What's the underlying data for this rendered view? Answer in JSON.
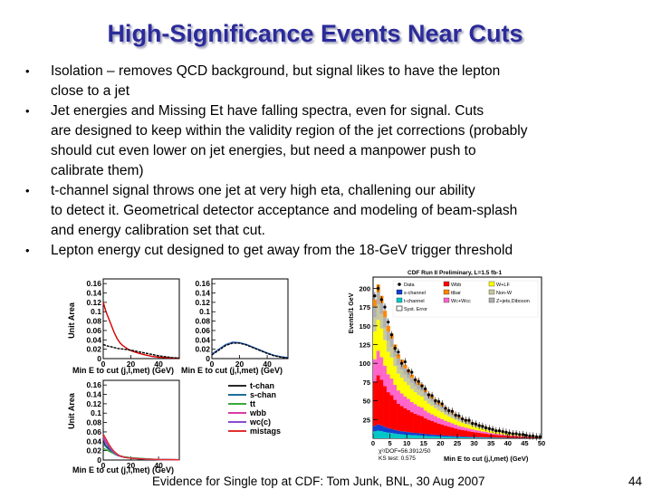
{
  "slide": {
    "title": "High-Significance Events Near Cuts",
    "bullets": [
      {
        "lines": [
          "Isolation – removes QCD background, but signal likes to have the lepton",
          "close to a jet"
        ]
      },
      {
        "lines": [
          "Jet energies and Missing Et have falling spectra, even for signal.  Cuts",
          "are designed to keep within the validity region of the jet corrections (probably",
          "should cut even lower on jet energies, but need a manpower push to",
          "calibrate them)"
        ]
      },
      {
        "lines": [
          "t-channel signal throws one jet at very high eta, challening our ability",
          "to detect it.  Geometrical detector acceptance and modeling of beam-splash",
          "and energy calibration set that cut."
        ]
      },
      {
        "lines": [
          "Lepton energy cut designed to get away from the 18-GeV trigger threshold"
        ]
      }
    ],
    "footer": "Evidence for Single top at CDF: Tom Junk, BNL, 30 Aug 2007",
    "page_number": "44"
  },
  "chart_data": [
    {
      "type": "line",
      "title": "",
      "ylabel": "Unit Area",
      "xlabel": "Min E to cut (j,l,met) (GeV)",
      "yticks": [
        "0.16",
        "0.14",
        "0.12",
        "0.1",
        "0.08",
        "0.06",
        "0.04",
        "0.02",
        "0"
      ],
      "xticks": [
        "0",
        "20",
        "40"
      ],
      "xlim": [
        0,
        55
      ],
      "ylim": [
        0,
        0.17
      ],
      "series": [
        {
          "name": "red",
          "color": "#d40000",
          "x": [
            0,
            2,
            4,
            6,
            8,
            10,
            12,
            14,
            16,
            18,
            20,
            25,
            30,
            35,
            40,
            45,
            50,
            55
          ],
          "values": [
            0.12,
            0.1,
            0.085,
            0.07,
            0.055,
            0.043,
            0.034,
            0.028,
            0.024,
            0.02,
            0.017,
            0.012,
            0.008,
            0.005,
            0.003,
            0.002,
            0.001,
            0.001
          ]
        },
        {
          "name": "black",
          "color": "#000000",
          "x": [
            0,
            3,
            6,
            10,
            15,
            20,
            25,
            30,
            35,
            40,
            45,
            50,
            55
          ],
          "values": [
            0.03,
            0.027,
            0.025,
            0.022,
            0.02,
            0.018,
            0.015,
            0.012,
            0.009,
            0.006,
            0.004,
            0.002,
            0.001
          ]
        }
      ]
    },
    {
      "type": "line",
      "title": "",
      "ylabel": "",
      "xlabel": "Min E to cut (j,l,met) (GeV)",
      "yticks": [
        "0.16",
        "0.14",
        "0.12",
        "0.1",
        "0.08",
        "0.06",
        "0.04",
        "0.02",
        "0"
      ],
      "xticks": [
        "0",
        "20",
        "40"
      ],
      "xlim": [
        0,
        55
      ],
      "ylim": [
        0,
        0.17
      ],
      "series": [
        {
          "name": "blue",
          "color": "#2060c0",
          "x": [
            0,
            5,
            10,
            15,
            20,
            25,
            30,
            35,
            40,
            45,
            50,
            55
          ],
          "values": [
            0.01,
            0.02,
            0.03,
            0.035,
            0.034,
            0.03,
            0.024,
            0.018,
            0.012,
            0.007,
            0.004,
            0.002
          ]
        },
        {
          "name": "black",
          "color": "#000000",
          "x": [
            0,
            5,
            10,
            15,
            20,
            25,
            30,
            35,
            40,
            45,
            50,
            55
          ],
          "values": [
            0.008,
            0.018,
            0.028,
            0.033,
            0.033,
            0.029,
            0.023,
            0.017,
            0.011,
            0.006,
            0.003,
            0.001
          ]
        }
      ]
    },
    {
      "type": "line",
      "title": "",
      "ylabel": "Unit Area",
      "xlabel": "Min E to cut (j,l,met) (GeV)",
      "yticks": [
        "0.16",
        "0.14",
        "0.12",
        "0.1",
        "0.08",
        "0.06",
        "0.04",
        "0.02",
        "0"
      ],
      "xticks": [
        "0",
        "20",
        "40"
      ],
      "xlim": [
        0,
        55
      ],
      "ylim": [
        0,
        0.17
      ],
      "legend": [
        "t-chan",
        "s-chan",
        "tt",
        "wbb",
        "wc(c)",
        "mistags"
      ],
      "series": [
        {
          "name": "t-chan",
          "color": "#2a2a2a",
          "x": [
            0,
            2,
            4,
            6,
            8,
            10,
            12,
            15,
            20,
            30,
            40,
            55
          ],
          "values": [
            0.04,
            0.03,
            0.025,
            0.02,
            0.015,
            0.012,
            0.009,
            0.006,
            0.004,
            0.002,
            0.001,
            0.0005
          ]
        },
        {
          "name": "s-chan",
          "color": "#1f6e9c",
          "x": [
            0,
            2,
            4,
            6,
            8,
            10,
            12,
            15,
            20,
            30,
            40,
            55
          ],
          "values": [
            0.035,
            0.028,
            0.022,
            0.017,
            0.013,
            0.01,
            0.008,
            0.006,
            0.004,
            0.002,
            0.001,
            0.0005
          ]
        },
        {
          "name": "tt",
          "color": "#3aa83a",
          "x": [
            0,
            2,
            4,
            6,
            8,
            10,
            12,
            15,
            20,
            30,
            40,
            55
          ],
          "values": [
            0.025,
            0.022,
            0.019,
            0.016,
            0.013,
            0.011,
            0.009,
            0.007,
            0.005,
            0.003,
            0.001,
            0.0005
          ]
        },
        {
          "name": "wbb",
          "color": "#d83aa8",
          "x": [
            0,
            2,
            4,
            6,
            8,
            10,
            12,
            15,
            20,
            30,
            40,
            55
          ],
          "values": [
            0.05,
            0.04,
            0.03,
            0.022,
            0.016,
            0.012,
            0.009,
            0.006,
            0.004,
            0.002,
            0.001,
            0.0005
          ]
        },
        {
          "name": "wc(c)",
          "color": "#8a4bd0",
          "x": [
            0,
            2,
            4,
            6,
            8,
            10,
            12,
            15,
            20,
            30,
            40,
            55
          ],
          "values": [
            0.045,
            0.036,
            0.028,
            0.021,
            0.015,
            0.011,
            0.008,
            0.006,
            0.004,
            0.002,
            0.001,
            0.0005
          ]
        },
        {
          "name": "mistags",
          "color": "#e03030",
          "x": [
            0,
            2,
            4,
            6,
            8,
            10,
            12,
            15,
            20,
            30,
            40,
            55
          ],
          "values": [
            0.055,
            0.045,
            0.034,
            0.025,
            0.018,
            0.013,
            0.009,
            0.006,
            0.004,
            0.002,
            0.001,
            0.0005
          ]
        }
      ]
    },
    {
      "type": "bar",
      "title": "CDF Run II Preliminary, L=1.5 fb-1",
      "ylabel": "Events/1 GeV",
      "xlabel": "Min E to cut (j,l,met) (GeV)",
      "xticks": [
        "0",
        "5",
        "10",
        "15",
        "20",
        "25",
        "30",
        "35",
        "40",
        "45",
        "50"
      ],
      "yticks": [
        "200",
        "175",
        "150",
        "125",
        "100",
        "75",
        "50",
        "25"
      ],
      "xlim": [
        0,
        50
      ],
      "ylim": [
        0,
        215
      ],
      "legend": [
        "Data",
        "Wbb",
        "W+LF",
        "s-channel",
        "ttbar",
        "Non-W",
        "t-channel",
        "Wc+Wcc",
        "Z+jets,Diboson",
        "Syst. Error"
      ],
      "annotations": [
        "χ²/DOF=56.3912/50",
        "KS test: 0.575"
      ],
      "stack_order": [
        "t-channel",
        "s-channel",
        "Wbb",
        "Wc+Wcc",
        "W+LF",
        "Non-W",
        "Z+jets,Diboson",
        "ttbar"
      ],
      "stack_colors": {
        "t-channel": "#00c8c8",
        "s-channel": "#1040d0",
        "Wbb": "#ff0000",
        "Wc+Wcc": "#ff66cc",
        "W+LF": "#ffff00",
        "Non-W": "#c8c8a0",
        "Z+jets,Diboson": "#b0b0b0",
        "ttbar": "#ff8800"
      },
      "x": [
        1,
        2,
        3,
        4,
        5,
        6,
        7,
        8,
        9,
        10,
        11,
        12,
        13,
        14,
        15,
        16,
        17,
        18,
        19,
        20,
        21,
        22,
        23,
        24,
        25,
        26,
        27,
        28,
        29,
        30,
        31,
        32,
        33,
        34,
        35,
        36,
        37,
        38,
        39,
        40,
        41,
        42,
        43,
        44,
        45,
        46,
        47,
        48,
        49,
        50
      ],
      "totals": [
        185,
        205,
        190,
        170,
        150,
        140,
        125,
        112,
        105,
        98,
        92,
        85,
        80,
        75,
        72,
        65,
        60,
        56,
        52,
        48,
        45,
        41,
        38,
        35,
        32,
        29,
        27,
        25,
        23,
        21,
        19,
        18,
        16,
        15,
        13,
        12,
        11,
        10,
        9,
        8,
        7,
        7,
        6,
        5,
        5,
        4,
        4,
        3,
        3,
        2
      ],
      "fractions": {
        "t-channel": 0.05,
        "s-channel": 0.04,
        "Wbb": 0.32,
        "Wc+Wcc": 0.16,
        "W+LF": 0.2,
        "Non-W": 0.1,
        "Z+jets,Diboson": 0.08,
        "ttbar": 0.05
      },
      "data_values": [
        190,
        200,
        185,
        175,
        155,
        138,
        120,
        115,
        100,
        102,
        90,
        88,
        78,
        76,
        70,
        66,
        58,
        57,
        50,
        49,
        46,
        40,
        37,
        36,
        31,
        30,
        26,
        24,
        24,
        20,
        19,
        17,
        16,
        14,
        13,
        12,
        10,
        10,
        9,
        8,
        7,
        6,
        6,
        5,
        5,
        4,
        3,
        3,
        2,
        2
      ]
    }
  ],
  "legends": {
    "mc_left": [
      "t-chan",
      "s-chan",
      "tt",
      "wbb",
      "wc(c)",
      "mistags"
    ],
    "cdf": [
      {
        "label": "Data",
        "marker": "dot",
        "color": "#000000"
      },
      {
        "label": "Wbb",
        "marker": "box",
        "color": "#ff0000"
      },
      {
        "label": "W+LF",
        "marker": "box",
        "color": "#ffff00"
      },
      {
        "label": "s-channel",
        "marker": "box",
        "color": "#1040d0"
      },
      {
        "label": "ttbar",
        "marker": "box",
        "color": "#ff8800"
      },
      {
        "label": "Non-W",
        "marker": "box",
        "color": "#c8c8a0"
      },
      {
        "label": "t-channel",
        "marker": "box",
        "color": "#00c8c8"
      },
      {
        "label": "Wc+Wcc",
        "marker": "box",
        "color": "#ff66cc"
      },
      {
        "label": "Z+jets,Diboson",
        "marker": "box",
        "color": "#b0b0b0"
      },
      {
        "label": "Syst. Error",
        "marker": "hatch",
        "color": "#000000"
      }
    ]
  }
}
